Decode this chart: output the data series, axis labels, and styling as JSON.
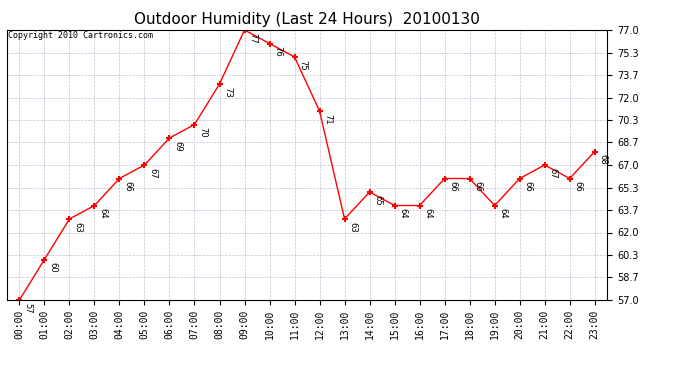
{
  "title": "Outdoor Humidity (Last 24 Hours)  20100130",
  "copyright": "Copyright 2010 Cartronics.com",
  "x_labels": [
    "00:00",
    "01:00",
    "02:00",
    "03:00",
    "04:00",
    "05:00",
    "06:00",
    "07:00",
    "08:00",
    "09:00",
    "10:00",
    "11:00",
    "12:00",
    "13:00",
    "14:00",
    "15:00",
    "16:00",
    "17:00",
    "18:00",
    "19:00",
    "20:00",
    "21:00",
    "22:00",
    "23:00"
  ],
  "y_values": [
    57,
    60,
    63,
    64,
    66,
    67,
    69,
    70,
    73,
    77,
    76,
    75,
    71,
    63,
    65,
    64,
    64,
    66,
    66,
    64,
    66,
    67,
    66,
    68
  ],
  "point_labels": [
    "57",
    "60",
    "63",
    "64",
    "66",
    "67",
    "69",
    "70",
    "73",
    "77",
    "76",
    "75",
    "71",
    "63",
    "65",
    "64",
    "64",
    "66",
    "66",
    "64",
    "66",
    "67",
    "66",
    "68"
  ],
  "ylim_min": 57.0,
  "ylim_max": 77.0,
  "yticks": [
    57.0,
    58.7,
    60.3,
    62.0,
    63.7,
    65.3,
    67.0,
    68.7,
    70.3,
    72.0,
    73.7,
    75.3,
    77.0
  ],
  "line_color": "red",
  "marker_color": "red",
  "marker": "+",
  "background_color": "white",
  "grid_color": "#b0b0cc",
  "title_fontsize": 11,
  "label_fontsize": 6,
  "tick_fontsize": 7,
  "copyright_fontsize": 6
}
